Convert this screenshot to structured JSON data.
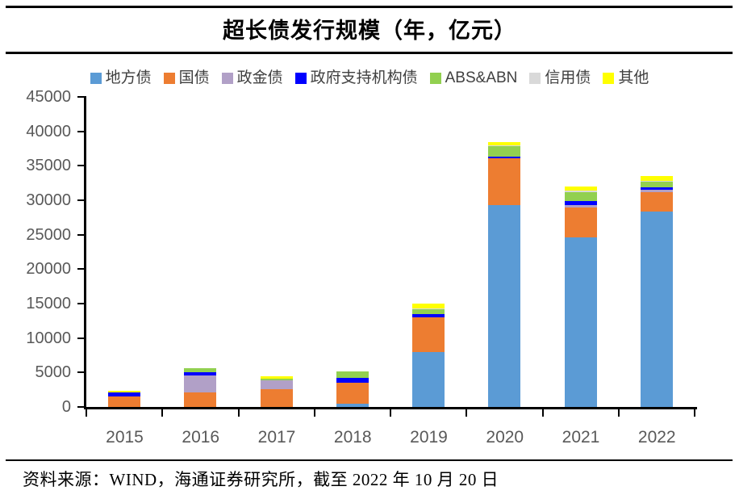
{
  "title": "超长债发行规模（年，亿元）",
  "source": "资料来源：WIND，海通证券研究所，截至 2022 年 10 月 20 日",
  "chart_data": {
    "type": "bar",
    "stacked": true,
    "title": "超长债发行规模（年，亿元）",
    "categories": [
      "2015",
      "2016",
      "2017",
      "2018",
      "2019",
      "2020",
      "2021",
      "2022"
    ],
    "series": [
      {
        "name": "地方债",
        "color": "#5B9BD5",
        "values": [
          0,
          0,
          0,
          450,
          8000,
          29350,
          24650,
          28400
        ]
      },
      {
        "name": "国债",
        "color": "#ED7D31",
        "values": [
          1550,
          2100,
          2550,
          3100,
          4950,
          6700,
          4300,
          2800
        ]
      },
      {
        "name": "政金债",
        "color": "#B1A0C7",
        "values": [
          0,
          2500,
          1300,
          0,
          0,
          0,
          390,
          280
        ]
      },
      {
        "name": "政府支持机构债",
        "color": "#0000FF",
        "values": [
          600,
          430,
          0,
          650,
          550,
          270,
          590,
          390
        ]
      },
      {
        "name": "ABS&ABN",
        "color": "#92D050",
        "values": [
          0,
          600,
          280,
          900,
          670,
          1560,
          1290,
          780
        ]
      },
      {
        "name": "信用债",
        "color": "#D9D9D9",
        "values": [
          0,
          0,
          0,
          0,
          120,
          120,
          200,
          200
        ]
      },
      {
        "name": "其他",
        "color": "#FFFF00",
        "values": [
          150,
          0,
          350,
          0,
          700,
          400,
          590,
          650
        ]
      }
    ],
    "ylim": [
      0,
      45000
    ],
    "ytick_step": 5000,
    "xlabel": "",
    "ylabel": "",
    "grid": false,
    "legend_position": "top"
  }
}
